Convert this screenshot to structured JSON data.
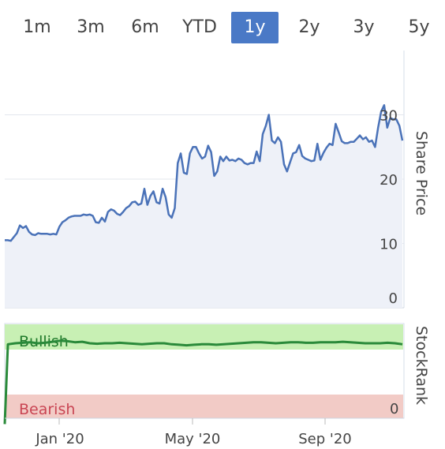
{
  "range_selector": {
    "options": [
      "1m",
      "3m",
      "6m",
      "YTD",
      "1y",
      "2y",
      "3y",
      "5y"
    ],
    "selected": "1y",
    "accent_color": "#4a79c6"
  },
  "price_panel": {
    "axis_title": "Share Price",
    "tick_labels": [
      "0",
      "10",
      "20",
      "30"
    ]
  },
  "stockrank_panel": {
    "axis_title": "StockRank",
    "bullish_label": "Bullish",
    "bearish_label": "Bearish",
    "zero_label": "0",
    "bullish_color": "#c8f0b4",
    "bearish_color": "#f2cbc6",
    "line_color": "#2a8a3a"
  },
  "x_axis": {
    "tick_labels": [
      "Jan '20",
      "May '20",
      "Sep '20"
    ]
  },
  "chart_data": [
    {
      "type": "line",
      "series": [
        {
          "values": [
            10.5,
            10.5,
            10.4,
            11.0,
            11.6,
            12.8,
            12.4,
            12.7,
            11.8,
            11.4,
            11.3,
            11.6,
            11.5,
            11.5,
            11.5,
            11.4,
            11.5,
            11.4,
            12.6,
            13.3,
            13.6,
            14.0,
            14.2,
            14.3,
            14.3,
            14.3,
            14.5,
            14.4,
            14.5,
            14.3,
            13.3,
            13.2,
            14.0,
            13.4,
            14.9,
            15.3,
            15.1,
            14.6,
            14.4,
            14.9,
            15.5,
            15.8,
            16.4,
            16.5,
            16.0,
            16.2,
            18.5,
            16.0,
            17.4,
            18.1,
            16.4,
            16.2,
            18.5,
            17.2,
            14.5,
            14.0,
            15.5,
            22.5,
            24.0,
            21.0,
            20.8,
            24.0,
            25.0,
            25.0,
            24.0,
            23.2,
            23.5,
            25.2,
            24.2,
            20.5,
            21.2,
            23.5,
            22.8,
            23.5,
            22.9,
            23.0,
            22.8,
            23.2,
            23.0,
            22.5,
            22.3,
            22.5,
            22.5,
            24.3,
            22.8,
            27.0,
            28.3,
            30.0,
            26.0,
            25.6,
            26.5,
            25.8,
            22.3,
            21.2,
            22.6,
            24.0,
            24.2,
            25.3,
            23.6,
            23.2,
            23.0,
            22.8,
            22.9,
            25.5,
            23.0,
            24.1,
            24.9,
            25.5,
            25.3,
            28.6,
            27.3,
            25.9,
            25.6,
            25.6,
            25.8,
            25.8,
            26.3,
            26.8,
            26.2,
            26.5,
            25.8,
            26.0,
            25.0,
            28.0,
            30.5,
            31.5,
            28.0,
            29.5,
            29.3,
            29.3,
            28.3,
            26.0
          ]
        }
      ],
      "ylim": [
        0,
        32
      ]
    },
    {
      "type": "line",
      "series": [
        {
          "values": [
            -0.6,
            0.98,
            1.0,
            1.01,
            1.02,
            1.0,
            1.01,
            1.03,
            1.05,
            1.04,
            1.02,
            1.03,
            1.0,
            0.99,
            1.0,
            1.0,
            1.01,
            1.0,
            0.99,
            0.98,
            0.99,
            1.0,
            1.0,
            0.98,
            0.97,
            0.96,
            0.97,
            0.98,
            0.98,
            0.97,
            0.98,
            0.99,
            1.0,
            1.01,
            1.02,
            1.02,
            1.01,
            1.0,
            1.01,
            1.02,
            1.02,
            1.01,
            1.01,
            1.02,
            1.02,
            1.02,
            1.03,
            1.02,
            1.01,
            1.0,
            1.0,
            1.0,
            1.01,
            1.0,
            0.98
          ]
        }
      ]
    }
  ]
}
